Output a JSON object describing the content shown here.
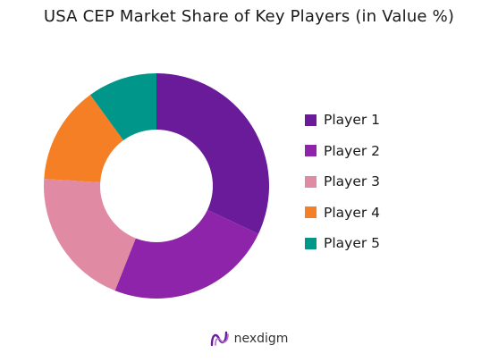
{
  "chart_data": {
    "type": "pie",
    "title": "USA CEP Market Share of Key Players (in Value %)",
    "categories": [
      "Player 1",
      "Player 2",
      "Player 3",
      "Player 4",
      "Player 5"
    ],
    "values": [
      32,
      24,
      20,
      14,
      10
    ],
    "colors": [
      "#6a1b9a",
      "#8e24aa",
      "#e08aa3",
      "#f57f24",
      "#00968a"
    ],
    "donut": true,
    "legend": "right"
  },
  "brand": {
    "name": "nexdigm",
    "logo_icon": "nexdigm-logo-icon"
  }
}
